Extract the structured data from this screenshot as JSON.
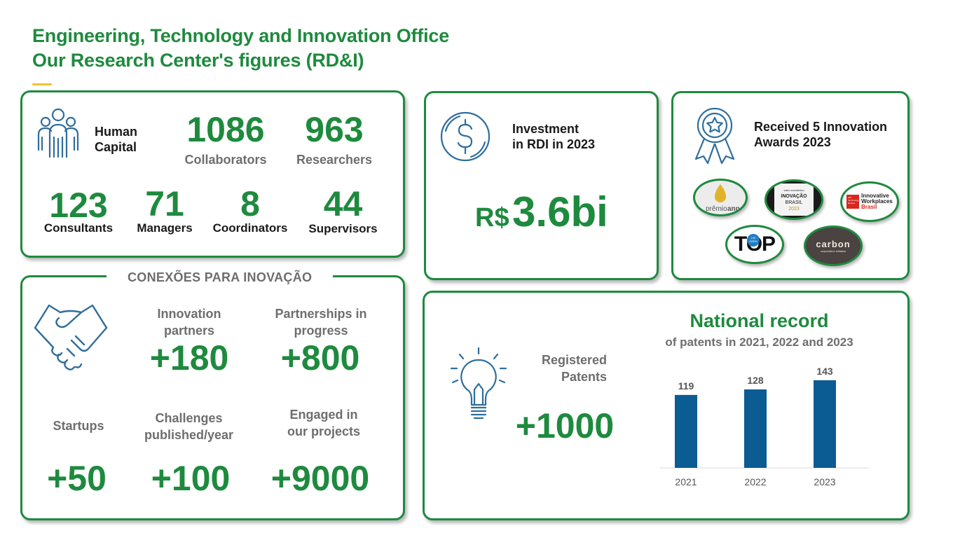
{
  "header": {
    "title_line1": "Engineering, Technology and Innovation Office",
    "title_line2": "Our Research Center's figures (RD&I)"
  },
  "human_capital": {
    "label_line1": "Human",
    "label_line2": "Capital",
    "icon": "people-group-icon",
    "collaborators": {
      "value": "1086",
      "label": "Collaborators"
    },
    "researchers": {
      "value": "963",
      "label": "Researchers"
    },
    "consultants": {
      "value": "123",
      "label": "Consultants"
    },
    "managers": {
      "value": "71",
      "label": "Managers"
    },
    "coordinators": {
      "value": "8",
      "label": "Coordinators"
    },
    "supervisors": {
      "value": "44",
      "label": "Supervisors"
    }
  },
  "investment": {
    "icon": "dollar-coin-icon",
    "label_line1": "Investment",
    "label_line2": "in RDI in 2023",
    "currency": "R$",
    "value": "3.6bi"
  },
  "awards": {
    "icon": "award-ribbon-icon",
    "label_line1": "Received 5 Innovation",
    "label_line2": "Awards 2023",
    "logos": {
      "premio_anp": {
        "brand": "prêmio",
        "brand_bold": "anp"
      },
      "inovacao": {
        "top": "valor econômico",
        "main": "INOVAÇÃO",
        "sub": "BRASIL",
        "year": "2023"
      },
      "workplaces": {
        "badge": "MIT Technology Review",
        "line1": "Innovative",
        "line2": "Workplaces",
        "line3": "Brasil"
      },
      "top": {
        "word": "TOP",
        "badge": "100 OPEN"
      },
      "carbon": {
        "word": "carbon",
        "sub": "cooperation initiative"
      }
    }
  },
  "connections": {
    "section_title": "CONEXÕES PARA INOVAÇÃO",
    "icon": "handshake-icon",
    "innovation_partners": {
      "label_line1": "Innovation",
      "label_line2": "partners",
      "value": "+180"
    },
    "partnerships": {
      "label_line1": "Partnerships in",
      "label_line2": "progress",
      "value": "+800"
    },
    "startups": {
      "label": "Startups",
      "value": "+50"
    },
    "challenges": {
      "label_line1": "Challenges",
      "label_line2": "published/year",
      "value": "+100"
    },
    "engaged": {
      "label_line1": "Engaged in",
      "label_line2": "our projects",
      "value": "+9000"
    }
  },
  "patents": {
    "icon": "lightbulb-icon",
    "label_line1": "Registered",
    "label_line2": "Patents",
    "value": "+1000",
    "chart_title": "National record",
    "chart_subtitle": "of patents in 2021, 2022 and 2023"
  },
  "colors": {
    "green": "#1e8a3e",
    "bar_blue": "#0a5c93",
    "icon_blue": "#2f6e9c",
    "accent_yellow": "#f2c230"
  },
  "chart_data": {
    "type": "bar",
    "categories": [
      "2021",
      "2022",
      "2023"
    ],
    "values": [
      119,
      128,
      143
    ],
    "title": "National record",
    "subtitle": "of patents in 2021, 2022 and 2023",
    "xlabel": "",
    "ylabel": "",
    "ylim": [
      0,
      160
    ],
    "grid": false,
    "data_labels": true
  }
}
